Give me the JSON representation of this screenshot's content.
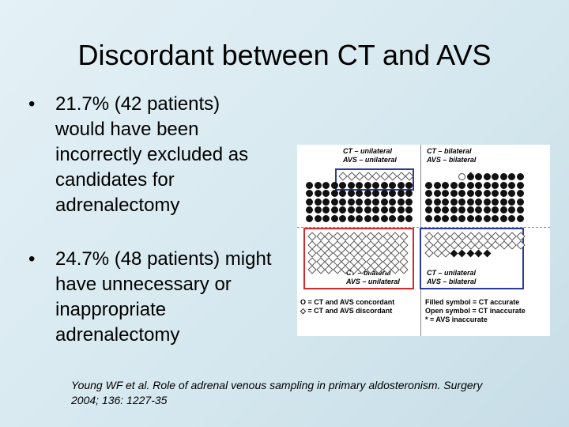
{
  "slide": {
    "title": "Discordant between CT and AVS",
    "bullets": [
      {
        "marker": "•",
        "lines": [
          "21.7% (42 patients)",
          "would have been",
          "incorrectly excluded as",
          "candidates for",
          "adrenalectomy"
        ]
      },
      {
        "marker": "•",
        "lines": [
          "24.7% (48 patients) might",
          "have unnecessary or",
          "inappropriate",
          "adrenalectomy"
        ]
      }
    ],
    "citation": {
      "lines": [
        "Young WF et al. Role of adrenal venous sampling in primary aldosteronism. Surgery",
        "2004; 136: 1227-35"
      ]
    }
  },
  "figure": {
    "quadrants": {
      "top_left": [
        "CT – unilateral",
        "AVS – unilateral"
      ],
      "top_right": [
        "CT – bilateral",
        "AVS – bilateral"
      ],
      "bottom_left": [
        "CT – bilateral",
        "AVS – unilateral"
      ],
      "bottom_right": [
        "CT – unilateral",
        "AVS – bilateral"
      ]
    },
    "legend_left": [
      "O = CT and AVS concordant",
      "◇ = CT and AVS discordant"
    ],
    "legend_right": [
      "Filled symbol = CT accurate",
      "Open symbol = CT inaccurate",
      "* = AVS inaccurate"
    ],
    "asterisk": "*",
    "colors": {
      "blue_box": "#2b3a9a",
      "red_box": "#d42a2a"
    }
  }
}
